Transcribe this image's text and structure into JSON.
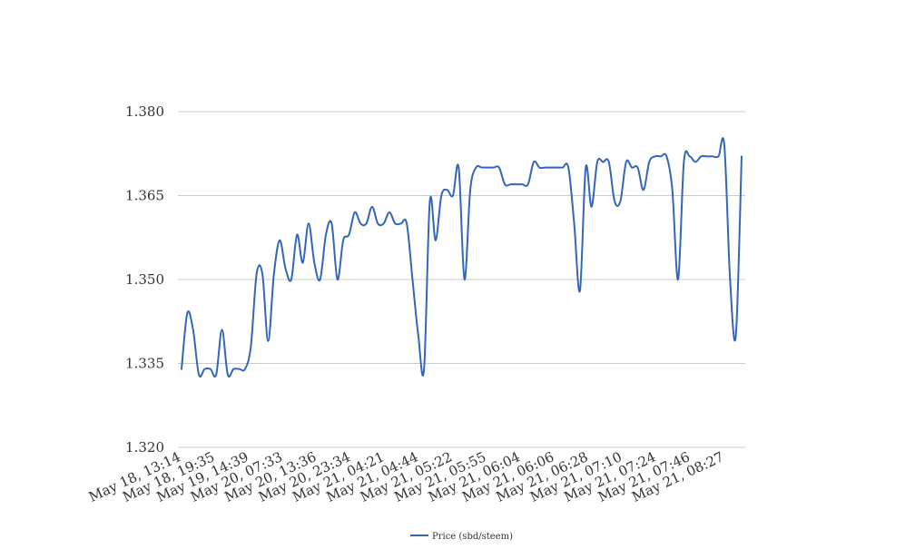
{
  "chart_data": {
    "type": "line",
    "title": "",
    "xlabel": "",
    "ylabel": "",
    "ylim": [
      1.32,
      1.38
    ],
    "yticks": [
      "1.320",
      "1.335",
      "1.350",
      "1.365",
      "1.380"
    ],
    "grid": true,
    "legend_position": "bottom",
    "x_tick_labels": [
      "May 18, 13:14",
      "May 18, 19:35",
      "May 19, 14:39",
      "May 20, 07:33",
      "May 20, 13:36",
      "May 20, 23:34",
      "May 21, 04:21",
      "May 21, 04:44",
      "May 21, 05:22",
      "May 21, 05:55",
      "May 21, 06:04",
      "May 21, 06:06",
      "May 21, 06:28",
      "May 21, 07:10",
      "May 21, 07:24",
      "May 21, 07:46",
      "May 21, 08:27"
    ],
    "series": [
      {
        "name": "Price (sbd/steem)",
        "color": "#3366bb",
        "values": [
          1.334,
          1.344,
          1.341,
          1.333,
          1.334,
          1.334,
          1.333,
          1.341,
          1.333,
          1.334,
          1.334,
          1.334,
          1.338,
          1.351,
          1.351,
          1.339,
          1.351,
          1.357,
          1.352,
          1.35,
          1.358,
          1.353,
          1.36,
          1.353,
          1.35,
          1.358,
          1.36,
          1.35,
          1.357,
          1.358,
          1.362,
          1.36,
          1.36,
          1.363,
          1.36,
          1.36,
          1.362,
          1.36,
          1.36,
          1.36,
          1.35,
          1.34,
          1.334,
          1.364,
          1.357,
          1.365,
          1.366,
          1.365,
          1.37,
          1.35,
          1.366,
          1.37,
          1.37,
          1.37,
          1.37,
          1.37,
          1.367,
          1.367,
          1.367,
          1.367,
          1.367,
          1.371,
          1.37,
          1.37,
          1.37,
          1.37,
          1.37,
          1.37,
          1.36,
          1.348,
          1.37,
          1.363,
          1.371,
          1.371,
          1.371,
          1.364,
          1.364,
          1.371,
          1.37,
          1.37,
          1.366,
          1.371,
          1.372,
          1.372,
          1.372,
          1.366,
          1.35,
          1.371,
          1.372,
          1.371,
          1.372,
          1.372,
          1.372,
          1.372,
          1.374,
          1.35,
          1.34,
          1.372
        ]
      }
    ]
  }
}
